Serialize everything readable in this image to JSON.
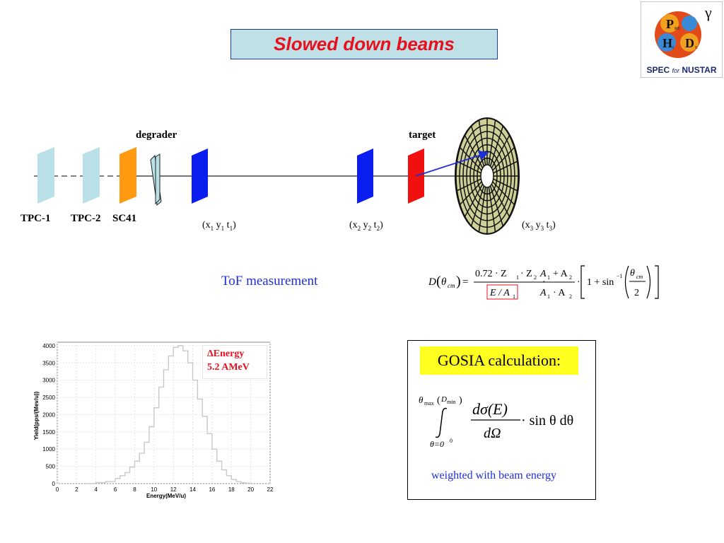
{
  "slide": {
    "title": "Slowed down beams"
  },
  "logo": {
    "letter_p": "P",
    "letter_re": "RE",
    "letter_h": "H",
    "letter_i": "I",
    "letter_d": "D",
    "letter_e": "E",
    "gamma": "γ",
    "text_spec": "SPEC",
    "text_for": "for",
    "text_nustar": "NUSTAR"
  },
  "setup": {
    "labels": {
      "degrader": "degrader",
      "target": "target",
      "tpc1": "TPC-1",
      "tpc2": "TPC-2",
      "sc41": "SC41"
    },
    "coords": [
      {
        "a": "x",
        "b": "y",
        "c": "t",
        "sub": "1"
      },
      {
        "a": "x",
        "b": "y",
        "c": "t",
        "sub": "2"
      },
      {
        "a": "x",
        "b": "y",
        "c": "t",
        "sub": "3"
      }
    ],
    "tof": "ToF measurement"
  },
  "formula": {
    "D": "D",
    "theta_cm": "θ",
    "cm": "cm",
    "eq": "=",
    "coef": "0.72 · Z",
    "z2": "· Z",
    "sub1": "1",
    "sub2": "2",
    "E_over_A": "E / A",
    "A1": "A",
    "A_plus": "+ A",
    "A_times": "· A",
    "dot": "·",
    "one_plus_sin": "1 + sin",
    "minus1": "−1",
    "two": "2"
  },
  "histogram": {
    "ylabel": "Yield(pps/(Mev/u))",
    "xlabel": "Energy(MeV/u)",
    "annotation_line1": "ΔEnergy",
    "annotation_line2": "5.2 AMeV"
  },
  "chart_data": {
    "type": "line",
    "title": "",
    "xlabel": "Energy(MeV/u)",
    "ylabel": "Yield(pps/(Mev/u))",
    "xlim": [
      0,
      22
    ],
    "ylim": [
      0,
      4100
    ],
    "xticks": [
      0,
      2,
      4,
      6,
      8,
      10,
      12,
      14,
      16,
      18,
      20,
      22
    ],
    "yticks": [
      0,
      500,
      1000,
      1500,
      2000,
      2500,
      3000,
      3500,
      4000
    ],
    "x": [
      3.0,
      4.0,
      5.0,
      6.0,
      6.5,
      7.0,
      7.5,
      8.0,
      8.5,
      9.0,
      9.5,
      10.0,
      10.5,
      11.0,
      11.5,
      12.0,
      12.5,
      13.0,
      13.5,
      14.0,
      14.5,
      15.0,
      15.5,
      16.0,
      16.5,
      17.0,
      17.5,
      18.0,
      18.5,
      19.0,
      19.5,
      20.0
    ],
    "y": [
      0,
      30,
      60,
      150,
      230,
      320,
      480,
      650,
      880,
      1200,
      1650,
      2200,
      2800,
      3300,
      3700,
      3950,
      4000,
      3850,
      3500,
      3000,
      2450,
      1950,
      1450,
      1000,
      650,
      400,
      230,
      120,
      60,
      25,
      10,
      0
    ],
    "grid": true
  },
  "gosia": {
    "title": "GOSIA calculation:",
    "theta": "θ",
    "max": "max",
    "Dmin": "D",
    "min": "min",
    "lower": "θ=0",
    "lower_exp": "0",
    "d_sigma": "dσ(E)",
    "d_omega": "dΩ",
    "tail": "· sin θ dθ",
    "note": "weighted with beam energy"
  }
}
